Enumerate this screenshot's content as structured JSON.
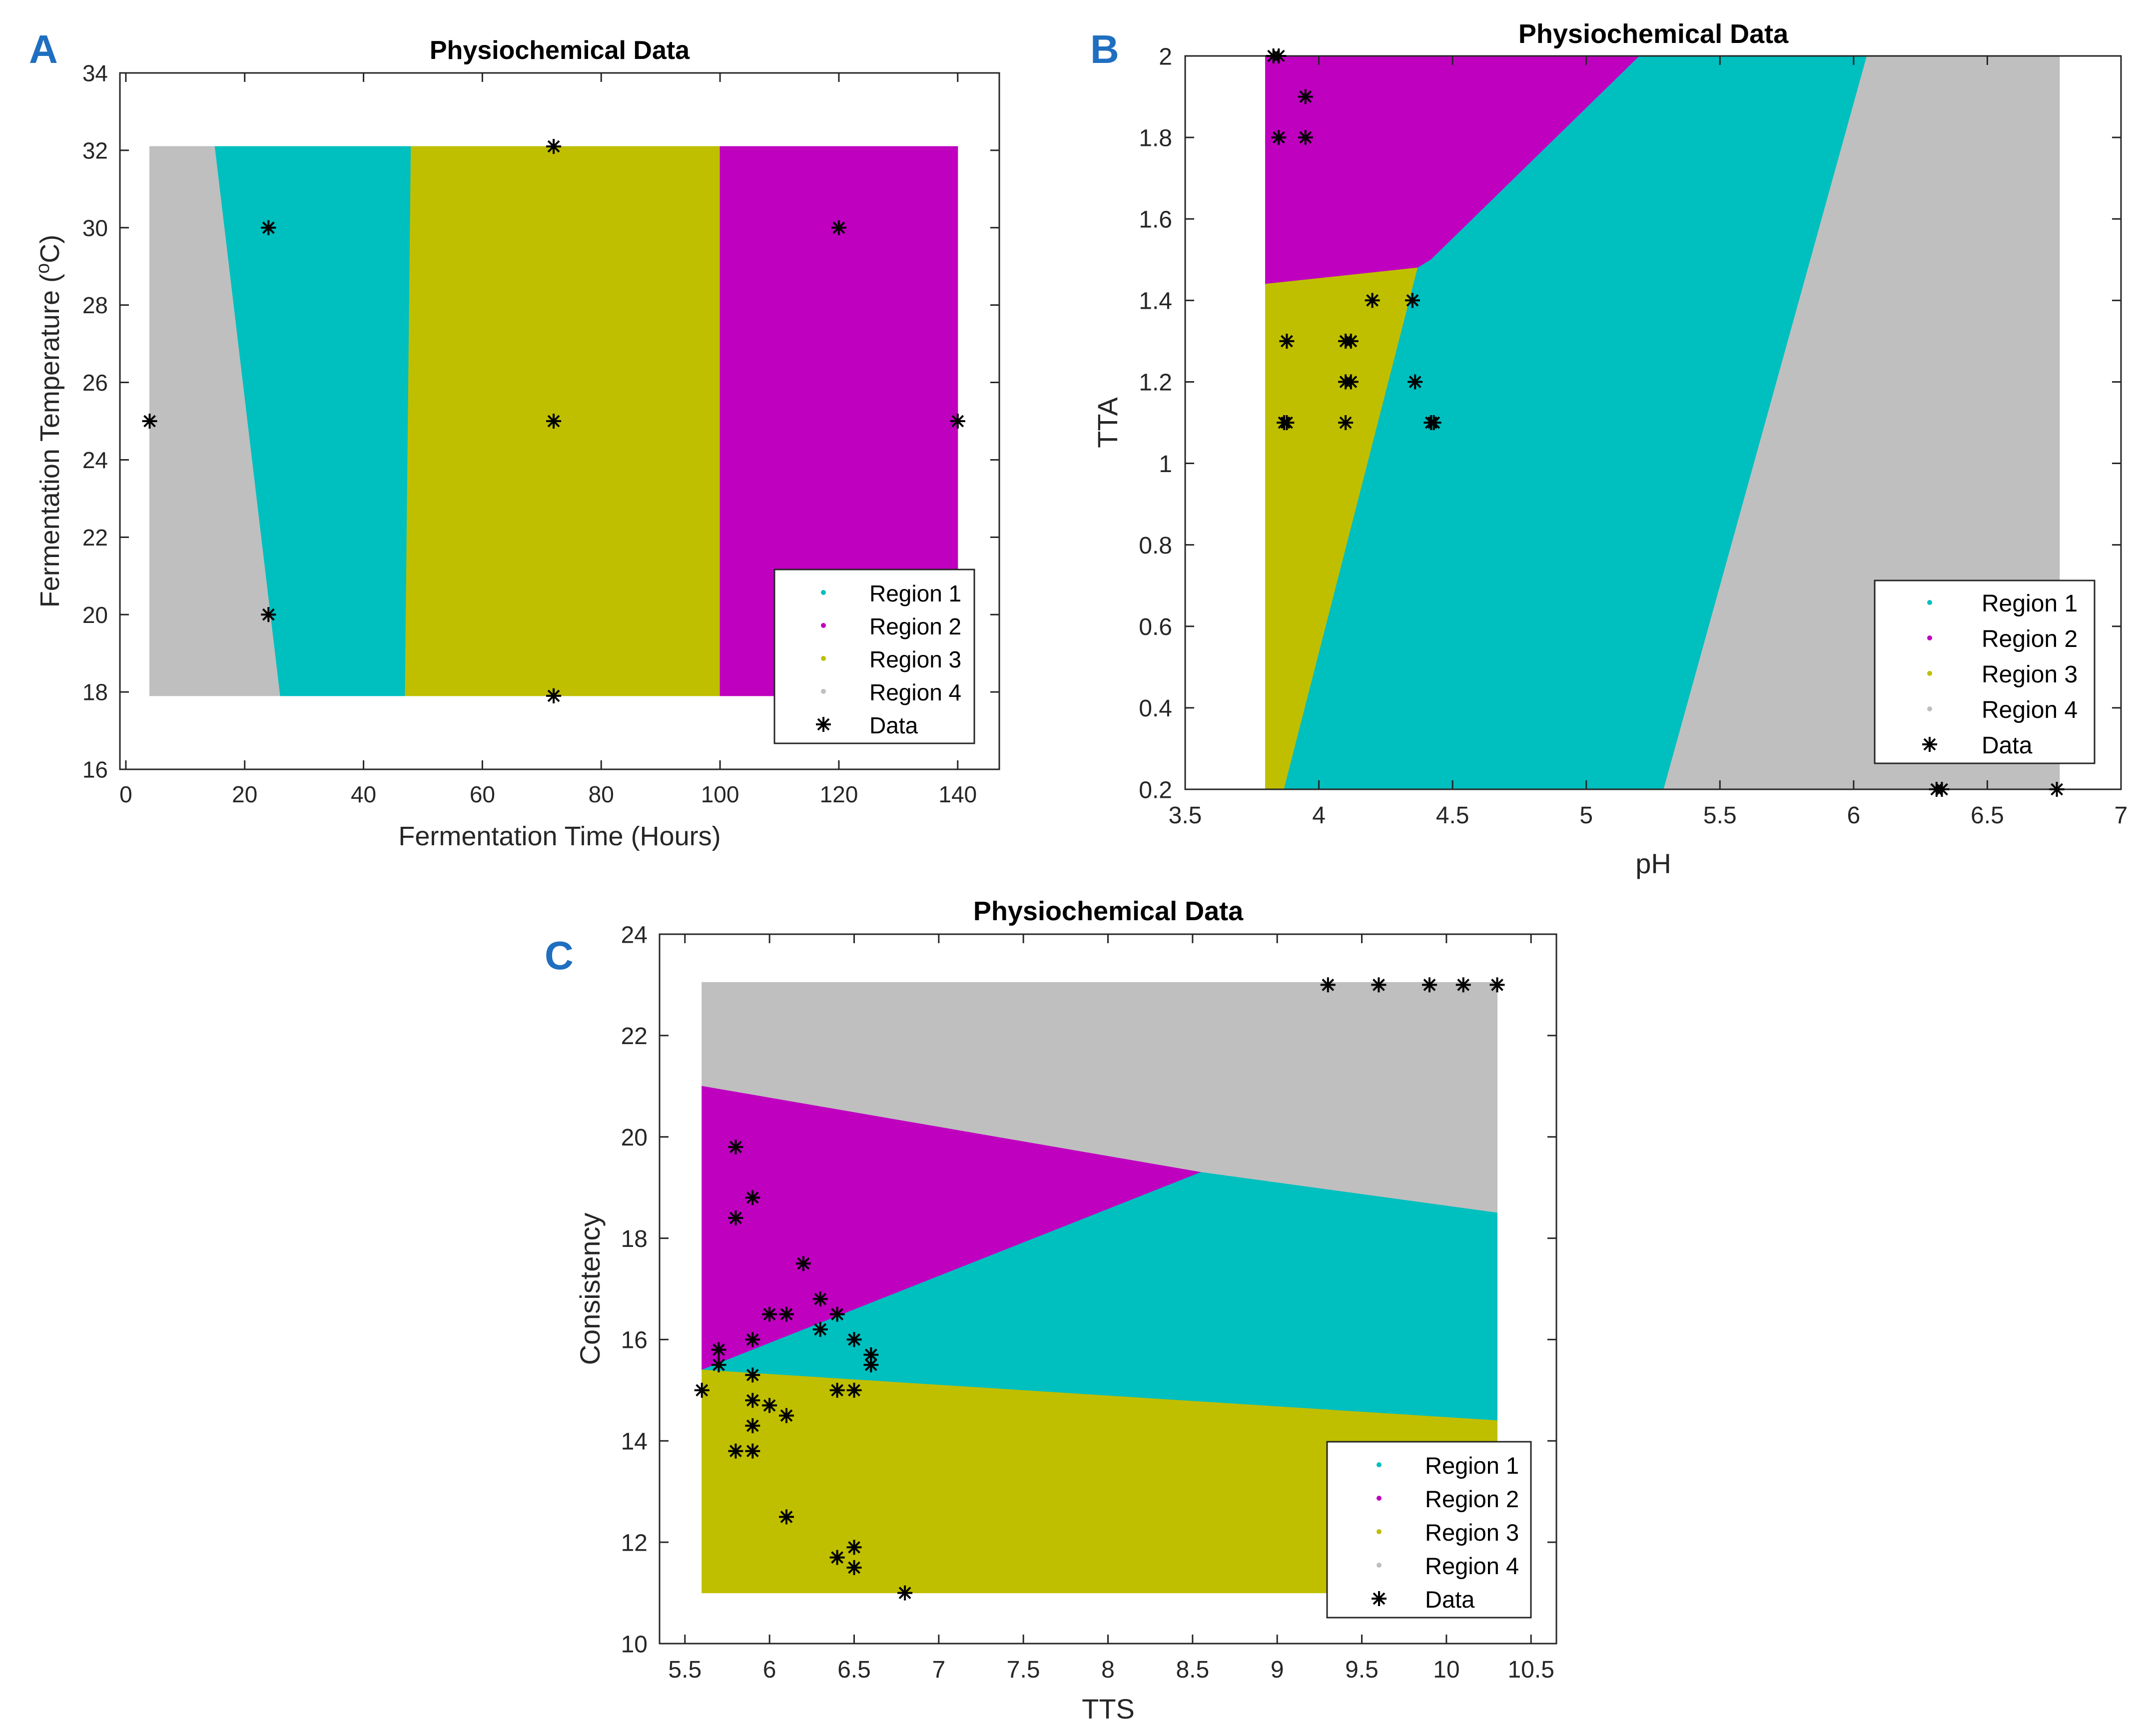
{
  "colors": {
    "region1": "#00BFBF",
    "region2": "#BF00BF",
    "region3": "#BFBF00",
    "region4": "#BFBFBF",
    "panel_letter": "#1F6FC0",
    "data_marker": "#000000"
  },
  "legend_entries": [
    "Region 1",
    "Region 2",
    "Region 3",
    "Region 4",
    "Data"
  ],
  "chart_data": [
    {
      "panel": "A",
      "type": "scatter",
      "title": "Physiochemical Data",
      "xlabel": "Fermentation Time (Hours)",
      "ylabel_prefix": "Fermentation Temperature (",
      "ylabel_sup": "o",
      "ylabel_suffix": "C)",
      "xlim": [
        -1,
        147
      ],
      "ylim": [
        16,
        34
      ],
      "xticks": [
        0,
        20,
        40,
        60,
        80,
        100,
        120,
        140
      ],
      "yticks": [
        16,
        18,
        20,
        22,
        24,
        26,
        28,
        30,
        32,
        34
      ],
      "legend_position": "bottom-right",
      "regions": [
        {
          "name": "Region 4",
          "polygon": [
            [
              4,
              17.9
            ],
            [
              26,
              17.9
            ],
            [
              15,
              32.1
            ],
            [
              4,
              32.1
            ]
          ]
        },
        {
          "name": "Region 1",
          "polygon": [
            [
              26,
              17.9
            ],
            [
              47,
              17.9
            ],
            [
              48,
              32.1
            ],
            [
              15,
              32.1
            ]
          ]
        },
        {
          "name": "Region 3",
          "polygon": [
            [
              47,
              17.9
            ],
            [
              100,
              17.9
            ],
            [
              100,
              32.1
            ],
            [
              48,
              32.1
            ]
          ]
        },
        {
          "name": "Region 2",
          "polygon": [
            [
              100,
              17.9
            ],
            [
              140,
              17.9
            ],
            [
              140,
              32.1
            ],
            [
              100,
              32.1
            ]
          ]
        }
      ],
      "points": [
        [
          4,
          25
        ],
        [
          24,
          30
        ],
        [
          24,
          20
        ],
        [
          72,
          32.1
        ],
        [
          72,
          25
        ],
        [
          72,
          17.9
        ],
        [
          120,
          30
        ],
        [
          140,
          25
        ]
      ]
    },
    {
      "panel": "B",
      "type": "scatter",
      "title": "Physiochemical Data",
      "xlabel": "pH",
      "ylabel": "TTA",
      "xlim": [
        3.5,
        7
      ],
      "ylim": [
        0.2,
        2
      ],
      "xticks": [
        3.5,
        4,
        4.5,
        5,
        5.5,
        6,
        6.5,
        7
      ],
      "yticks": [
        0.2,
        0.4,
        0.6,
        0.8,
        1,
        1.2,
        1.4,
        1.6,
        1.8,
        2
      ],
      "legend_position": "bottom-right",
      "regions": [
        {
          "name": "Region 2",
          "polygon": [
            [
              3.8,
              1.44
            ],
            [
              4.37,
              1.48
            ],
            [
              4.42,
              1.5
            ],
            [
              5.2,
              2
            ],
            [
              3.8,
              2
            ]
          ]
        },
        {
          "name": "Region 3",
          "polygon": [
            [
              3.8,
              0.2
            ],
            [
              3.87,
              0.2
            ],
            [
              4.37,
              1.48
            ],
            [
              3.8,
              1.44
            ]
          ]
        },
        {
          "name": "Region 1",
          "polygon": [
            [
              3.87,
              0.2
            ],
            [
              5.29,
              0.2
            ],
            [
              6.05,
              2
            ],
            [
              5.2,
              2
            ],
            [
              4.42,
              1.5
            ],
            [
              4.37,
              1.48
            ]
          ]
        },
        {
          "name": "Region 4",
          "polygon": [
            [
              5.29,
              0.2
            ],
            [
              6.77,
              0.2
            ],
            [
              6.77,
              2
            ],
            [
              6.05,
              2
            ]
          ]
        }
      ],
      "points": [
        [
          3.83,
          2
        ],
        [
          3.85,
          2
        ],
        [
          3.95,
          1.9
        ],
        [
          3.85,
          1.8
        ],
        [
          3.95,
          1.8
        ],
        [
          4.2,
          1.4
        ],
        [
          4.35,
          1.4
        ],
        [
          3.88,
          1.3
        ],
        [
          4.1,
          1.3
        ],
        [
          4.12,
          1.3
        ],
        [
          4.1,
          1.2
        ],
        [
          4.12,
          1.2
        ],
        [
          4.36,
          1.2
        ],
        [
          3.87,
          1.1
        ],
        [
          3.88,
          1.1
        ],
        [
          4.1,
          1.1
        ],
        [
          4.42,
          1.1
        ],
        [
          4.43,
          1.1
        ],
        [
          6.31,
          0.2
        ],
        [
          6.33,
          0.2
        ],
        [
          6.76,
          0.2
        ]
      ]
    },
    {
      "panel": "C",
      "type": "scatter",
      "title": "Physiochemical Data",
      "xlabel": "TTS",
      "ylabel": "Consistency",
      "xlim": [
        5.35,
        10.65
      ],
      "ylim": [
        10,
        24
      ],
      "xticks": [
        5.5,
        6,
        6.5,
        7,
        7.5,
        8,
        8.5,
        9,
        9.5,
        10,
        10.5
      ],
      "yticks": [
        10,
        12,
        14,
        16,
        18,
        20,
        22,
        24
      ],
      "legend_position": "bottom-right",
      "regions": [
        {
          "name": "Region 4",
          "polygon": [
            [
              5.6,
              21
            ],
            [
              8.55,
              19.3
            ],
            [
              10.3,
              18.5
            ],
            [
              10.3,
              23.05
            ],
            [
              5.6,
              23.05
            ]
          ]
        },
        {
          "name": "Region 2",
          "polygon": [
            [
              5.6,
              15.4
            ],
            [
              8.55,
              19.3
            ],
            [
              5.6,
              21
            ]
          ]
        },
        {
          "name": "Region 1",
          "polygon": [
            [
              5.6,
              15.4
            ],
            [
              10.3,
              14.4
            ],
            [
              10.3,
              18.5
            ],
            [
              8.55,
              19.3
            ]
          ]
        },
        {
          "name": "Region 3",
          "polygon": [
            [
              5.6,
              11
            ],
            [
              10.3,
              11
            ],
            [
              10.3,
              14.4
            ],
            [
              5.6,
              15.4
            ]
          ]
        }
      ],
      "points": [
        [
          9.3,
          23
        ],
        [
          9.6,
          23
        ],
        [
          9.9,
          23
        ],
        [
          10.1,
          23
        ],
        [
          10.3,
          23
        ],
        [
          5.8,
          19.8
        ],
        [
          5.9,
          18.8
        ],
        [
          5.8,
          18.4
        ],
        [
          6.2,
          17.5
        ],
        [
          6.3,
          16.8
        ],
        [
          6.0,
          16.5
        ],
        [
          6.1,
          16.5
        ],
        [
          6.4,
          16.5
        ],
        [
          6.3,
          16.2
        ],
        [
          5.9,
          16
        ],
        [
          6.5,
          16
        ],
        [
          5.7,
          15.8
        ],
        [
          6.6,
          15.7
        ],
        [
          5.7,
          15.5
        ],
        [
          6.6,
          15.5
        ],
        [
          5.9,
          15.3
        ],
        [
          5.6,
          15
        ],
        [
          6.4,
          15
        ],
        [
          6.5,
          15
        ],
        [
          5.9,
          14.8
        ],
        [
          6.0,
          14.7
        ],
        [
          6.1,
          14.5
        ],
        [
          5.9,
          14.3
        ],
        [
          5.8,
          13.8
        ],
        [
          5.9,
          13.8
        ],
        [
          6.1,
          12.5
        ],
        [
          6.5,
          11.9
        ],
        [
          6.4,
          11.7
        ],
        [
          6.5,
          11.5
        ],
        [
          6.8,
          11
        ]
      ]
    }
  ]
}
